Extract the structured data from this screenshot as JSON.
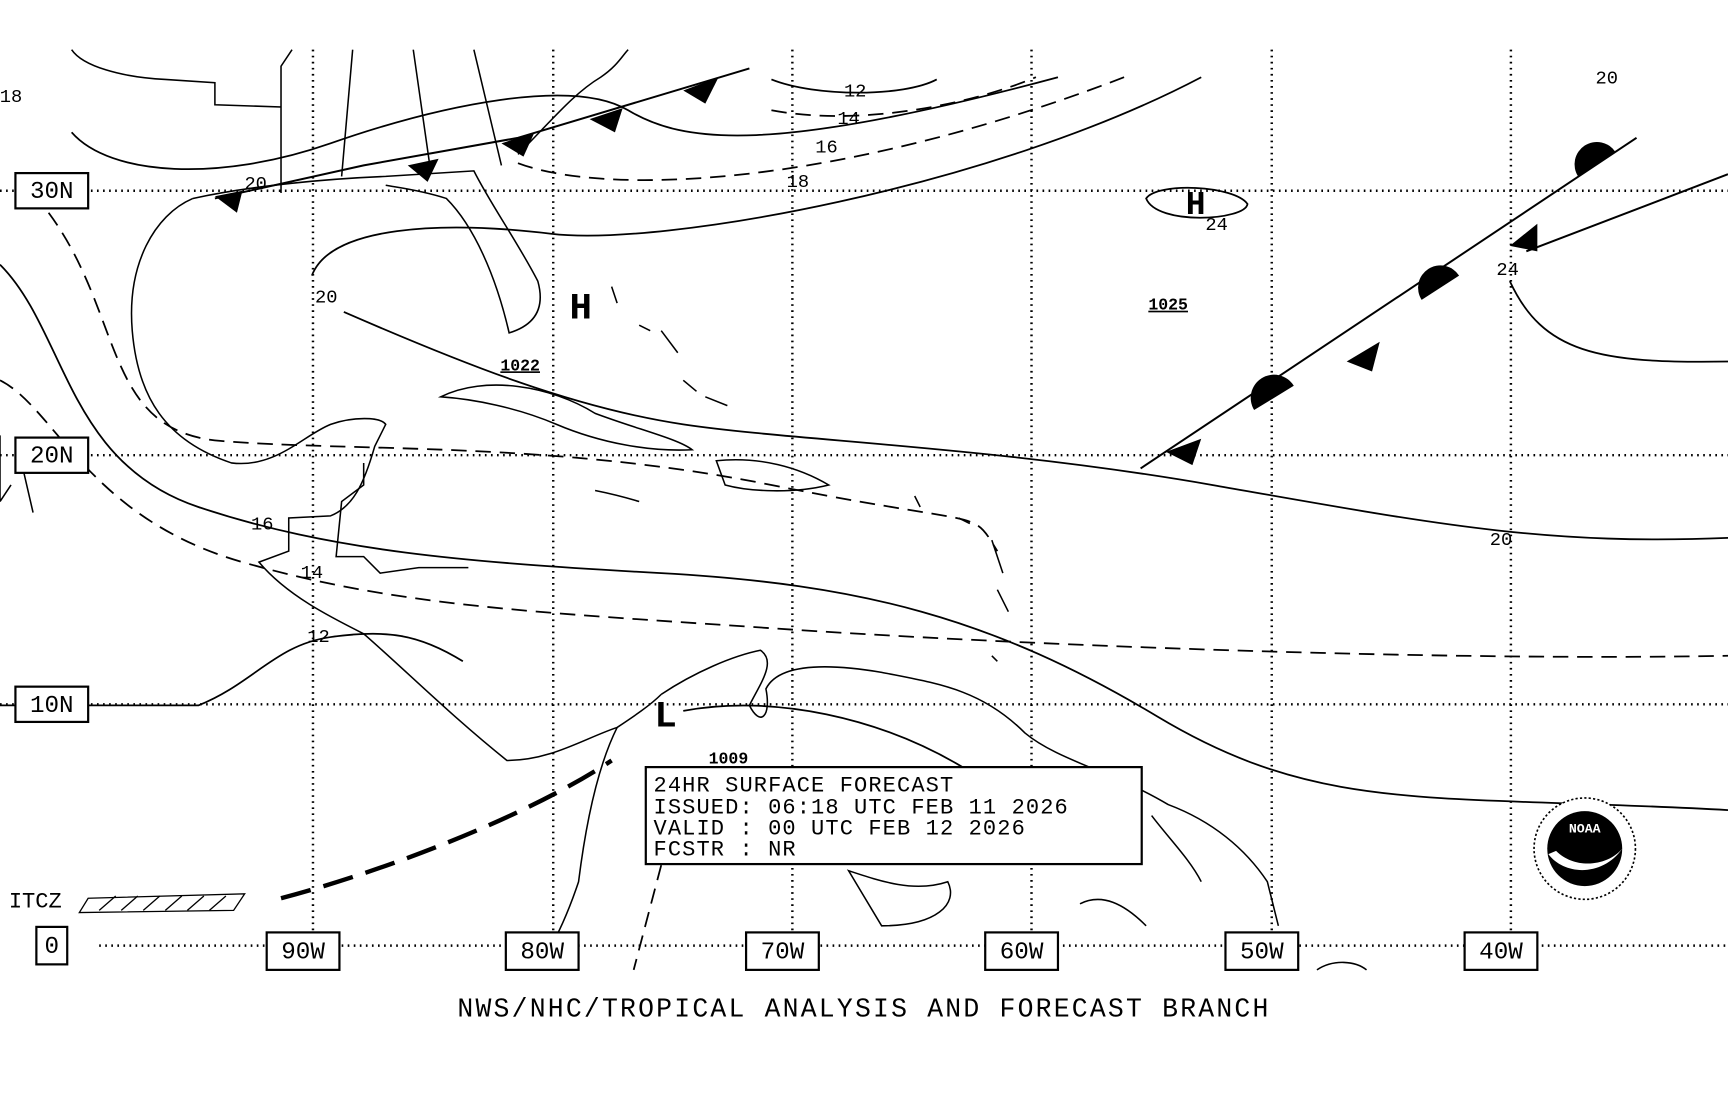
{
  "map": {
    "latitude_labels": [
      "30N",
      "20N",
      "10N",
      "0"
    ],
    "longitude_labels": [
      "90W",
      "80W",
      "70W",
      "60W",
      "50W",
      "40W"
    ],
    "isobar_labels": [
      "18",
      "20",
      "20",
      "12",
      "14",
      "16",
      "18",
      "24",
      "24",
      "20",
      "16",
      "14",
      "12",
      "20"
    ],
    "pressure_centers": [
      {
        "symbol": "H",
        "value": "1022"
      },
      {
        "symbol": "H",
        "value": "1025"
      },
      {
        "symbol": "L",
        "value": "1009"
      }
    ],
    "itcz_label": "ITCZ",
    "forecast_box": {
      "title": "24HR SURFACE FORECAST",
      "issued": "ISSUED: 06:18 UTC FEB 11 2026",
      "valid": "VALID : 00 UTC FEB 12 2026",
      "forecaster": "FCSTR : NR"
    },
    "logo_text": "NOAA",
    "footer": "NWS/NHC/TROPICAL ANALYSIS AND FORECAST BRANCH"
  }
}
